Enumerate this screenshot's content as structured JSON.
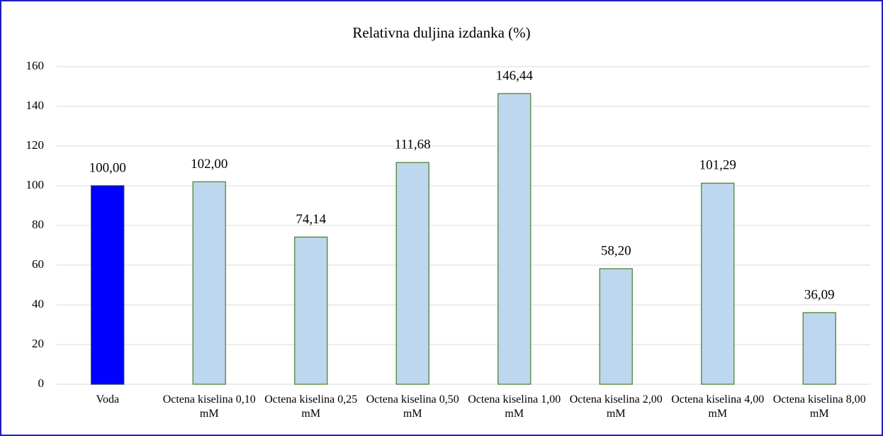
{
  "chart_data": {
    "type": "bar",
    "title": "Relativna duljina izdanka (%)",
    "categories": [
      "Voda",
      "Octena kiselina 0,10 mM",
      "Octena kiselina 0,25 mM",
      "Octena kiselina 0,50 mM",
      "Octena kiselina 1,00 mM",
      "Octena kiselina 2,00 mM",
      "Octena kiselina 4,00 mM",
      "Octena kiselina 8,00 mM"
    ],
    "values": [
      100,
      102,
      74.14,
      111.68,
      146.44,
      58.2,
      101.29,
      36.09
    ],
    "value_labels": [
      "100,00",
      "102,00",
      "74,14",
      "111,68",
      "146,44",
      "58,20",
      "101,29",
      "36,09"
    ],
    "colors": [
      "#0000ff",
      "#bdd7ee",
      "#bdd7ee",
      "#bdd7ee",
      "#bdd7ee",
      "#bdd7ee",
      "#bdd7ee",
      "#bdd7ee"
    ],
    "edge_colors": [
      "#1f3864",
      "#548235",
      "#548235",
      "#548235",
      "#548235",
      "#548235",
      "#548235",
      "#548235"
    ],
    "ylim": [
      0,
      160
    ],
    "yticks": [
      0,
      20,
      40,
      60,
      80,
      100,
      120,
      140,
      160
    ],
    "grid": true
  }
}
